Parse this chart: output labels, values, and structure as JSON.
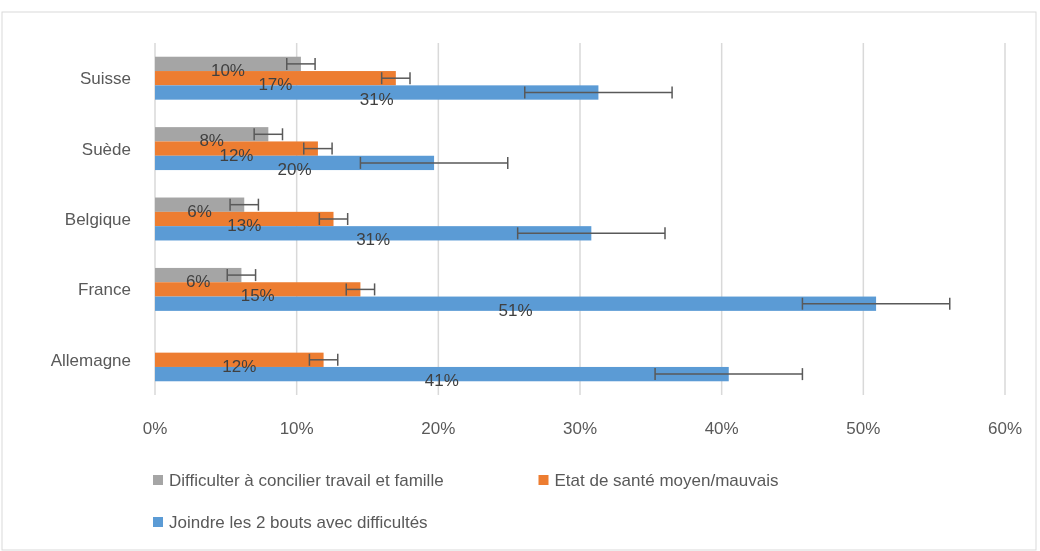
{
  "chart_data": {
    "type": "bar",
    "orientation": "horizontal",
    "categories": [
      "Suisse",
      "Suède",
      "Belgique",
      "France",
      "Allemagne"
    ],
    "series": [
      {
        "name": "Difficulter à concilier travail et famille",
        "color": "#a5a5a5",
        "values": [
          10.3,
          8.0,
          6.3,
          6.1,
          null
        ],
        "errors": [
          1.0,
          1.0,
          1.0,
          1.0,
          null
        ],
        "value_labels": [
          "10%",
          "8%",
          "6%",
          "6%",
          null
        ]
      },
      {
        "name": "Etat de santé moyen/mauvais",
        "color": "#ed7d31",
        "values": [
          17.0,
          11.5,
          12.6,
          14.5,
          11.9
        ],
        "errors": [
          1.0,
          1.0,
          1.0,
          1.0,
          1.0
        ],
        "value_labels": [
          "17%",
          "12%",
          "13%",
          "15%",
          "12%"
        ]
      },
      {
        "name": "Joindre les 2 bouts avec difficultés",
        "color": "#5b9bd5",
        "values": [
          31.3,
          19.7,
          30.8,
          50.9,
          40.5
        ],
        "errors": [
          5.2,
          5.2,
          5.2,
          5.2,
          5.2
        ],
        "value_labels": [
          "31%",
          "20%",
          "31%",
          "51%",
          "41%"
        ]
      }
    ],
    "xlim": [
      0,
      60
    ],
    "xticks": [
      {
        "value": 0,
        "label": "0%"
      },
      {
        "value": 10,
        "label": "10%"
      },
      {
        "value": 20,
        "label": "20%"
      },
      {
        "value": 30,
        "label": "30%"
      },
      {
        "value": 40,
        "label": "40%"
      },
      {
        "value": 50,
        "label": "50%"
      },
      {
        "value": 60,
        "label": "60%"
      }
    ],
    "grid": "x",
    "legend": "bottom"
  }
}
